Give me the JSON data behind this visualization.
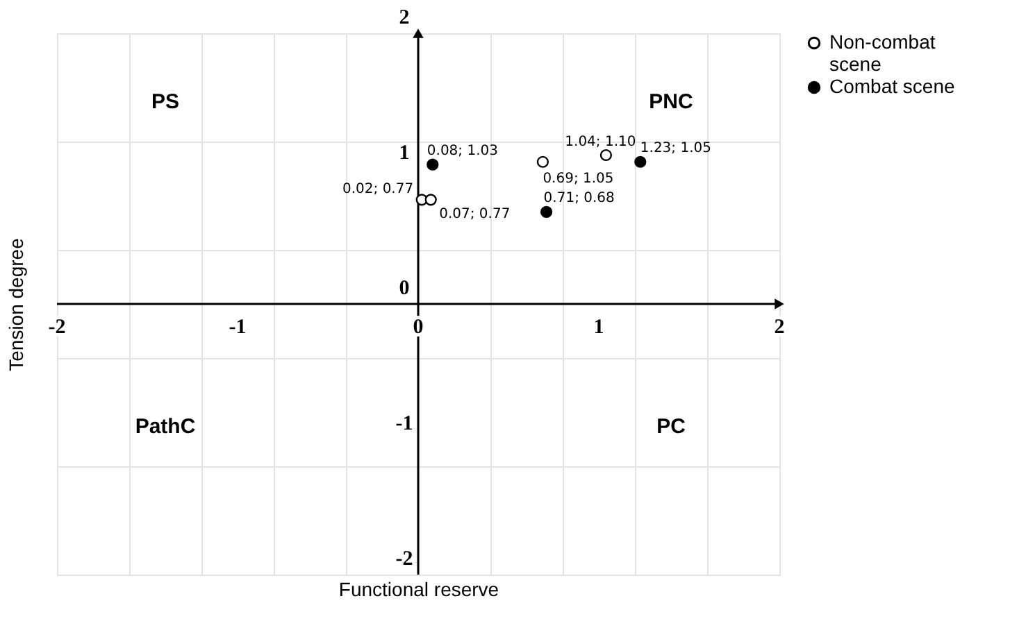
{
  "chart_data": {
    "type": "scatter",
    "xlabel": "Functional reserve",
    "ylabel": "Tension degree",
    "xlim": [
      -2,
      2
    ],
    "ylim": [
      -2,
      2
    ],
    "xticks": [
      -2,
      -1,
      0,
      1,
      2
    ],
    "yticks": [
      -2,
      -1,
      0,
      1,
      2
    ],
    "grid": true,
    "legend": "right",
    "marker": "circle",
    "annotations": [
      "PS",
      "PNC",
      "PathC",
      "PC"
    ],
    "series": [
      {
        "name": "Non-combat scene",
        "color": "#ffffff",
        "x": [
          0.02,
          0.07,
          0.69,
          1.04
        ],
        "values": [
          0.77,
          0.77,
          1.05,
          1.1
        ],
        "value_labels": [
          "0.02; 0.77",
          "0.07; 0.77",
          "0.69; 1.05",
          "1.04; 1.10"
        ]
      },
      {
        "name": "Combat scene",
        "color": "#000000",
        "x": [
          0.08,
          0.71,
          1.23
        ],
        "values": [
          1.03,
          0.68,
          1.05
        ],
        "value_labels": [
          "0.08; 1.03",
          "0.71; 0.68",
          "1.23; 1.05"
        ]
      }
    ]
  }
}
